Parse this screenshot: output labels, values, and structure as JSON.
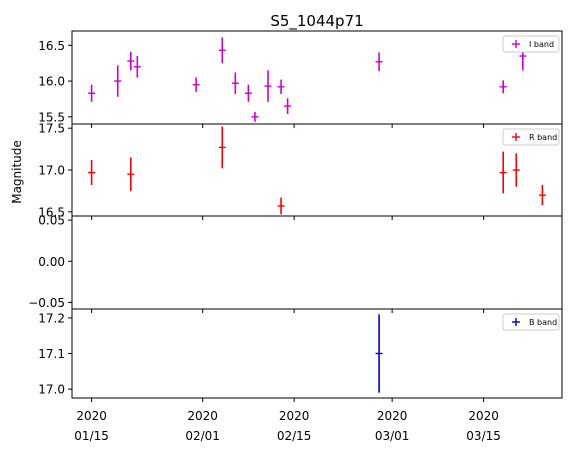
{
  "chart_data": {
    "type": "scatter",
    "title": "S5_1044p71",
    "ylabel": "Magnitude",
    "x_ticks": [
      {
        "date": "2020-01-15",
        "year": "2020",
        "label": "01/15"
      },
      {
        "date": "2020-02-01",
        "year": "2020",
        "label": "02/01"
      },
      {
        "date": "2020-02-15",
        "year": "2020",
        "label": "02/15"
      },
      {
        "date": "2020-03-01",
        "year": "2020",
        "label": "03/01"
      },
      {
        "date": "2020-03-15",
        "year": "2020",
        "label": "03/15"
      }
    ],
    "xlim": [
      "2020-01-12",
      "2020-03-27"
    ],
    "panels": [
      {
        "name": "I band",
        "color": "#cc00cc",
        "ylim": [
          16.7,
          15.4
        ],
        "yticks": [
          15.5,
          16.0,
          16.5
        ],
        "tick_labels": [
          "15.5",
          "16.0",
          "16.5"
        ],
        "points": [
          {
            "x": "2020-01-15",
            "y": 15.83,
            "err": 0.12
          },
          {
            "x": "2020-01-19",
            "y": 16.0,
            "err": 0.22
          },
          {
            "x": "2020-01-21",
            "y": 16.28,
            "err": 0.13
          },
          {
            "x": "2020-01-22",
            "y": 16.2,
            "err": 0.15
          },
          {
            "x": "2020-01-31",
            "y": 15.95,
            "err": 0.1
          },
          {
            "x": "2020-02-04",
            "y": 16.43,
            "err": 0.18
          },
          {
            "x": "2020-02-06",
            "y": 15.97,
            "err": 0.15
          },
          {
            "x": "2020-02-08",
            "y": 15.83,
            "err": 0.12
          },
          {
            "x": "2020-02-09",
            "y": 15.5,
            "err": 0.07
          },
          {
            "x": "2020-02-11",
            "y": 15.93,
            "err": 0.22
          },
          {
            "x": "2020-02-13",
            "y": 15.92,
            "err": 0.1
          },
          {
            "x": "2020-02-14",
            "y": 15.65,
            "err": 0.11
          },
          {
            "x": "2020-02-28",
            "y": 16.27,
            "err": 0.13
          },
          {
            "x": "2020-03-18",
            "y": 15.92,
            "err": 0.09
          },
          {
            "x": "2020-03-21",
            "y": 16.35,
            "err": 0.2
          }
        ]
      },
      {
        "name": "R band",
        "color": "#ff0000",
        "ylim": [
          17.55,
          16.45
        ],
        "yticks": [
          16.5,
          17.0,
          17.5
        ],
        "tick_labels": [
          "16.5",
          "17.0",
          "17.5"
        ],
        "points": [
          {
            "x": "2020-01-15",
            "y": 16.97,
            "err": 0.15
          },
          {
            "x": "2020-01-21",
            "y": 16.95,
            "err": 0.2
          },
          {
            "x": "2020-02-04",
            "y": 17.27,
            "err": 0.25
          },
          {
            "x": "2020-02-13",
            "y": 16.57,
            "err": 0.1
          },
          {
            "x": "2020-03-18",
            "y": 16.97,
            "err": 0.25
          },
          {
            "x": "2020-03-20",
            "y": 17.0,
            "err": 0.2
          },
          {
            "x": "2020-03-24",
            "y": 16.7,
            "err": 0.12
          }
        ]
      },
      {
        "name": "",
        "color": "#000000",
        "ylim": [
          0.055,
          -0.058
        ],
        "yticks": [
          0.05,
          0.0,
          -0.05
        ],
        "tick_labels": [
          "0.05",
          "0.00",
          "−0.05"
        ],
        "points": []
      },
      {
        "name": "B band",
        "color": "#0000cc",
        "ylim": [
          17.225,
          16.975
        ],
        "yticks": [
          17.0,
          17.1,
          17.2
        ],
        "tick_labels": [
          "17.0",
          "17.1",
          "17.2"
        ],
        "points": [
          {
            "x": "2020-02-28",
            "y": 17.1,
            "err": 0.11
          }
        ]
      }
    ]
  }
}
